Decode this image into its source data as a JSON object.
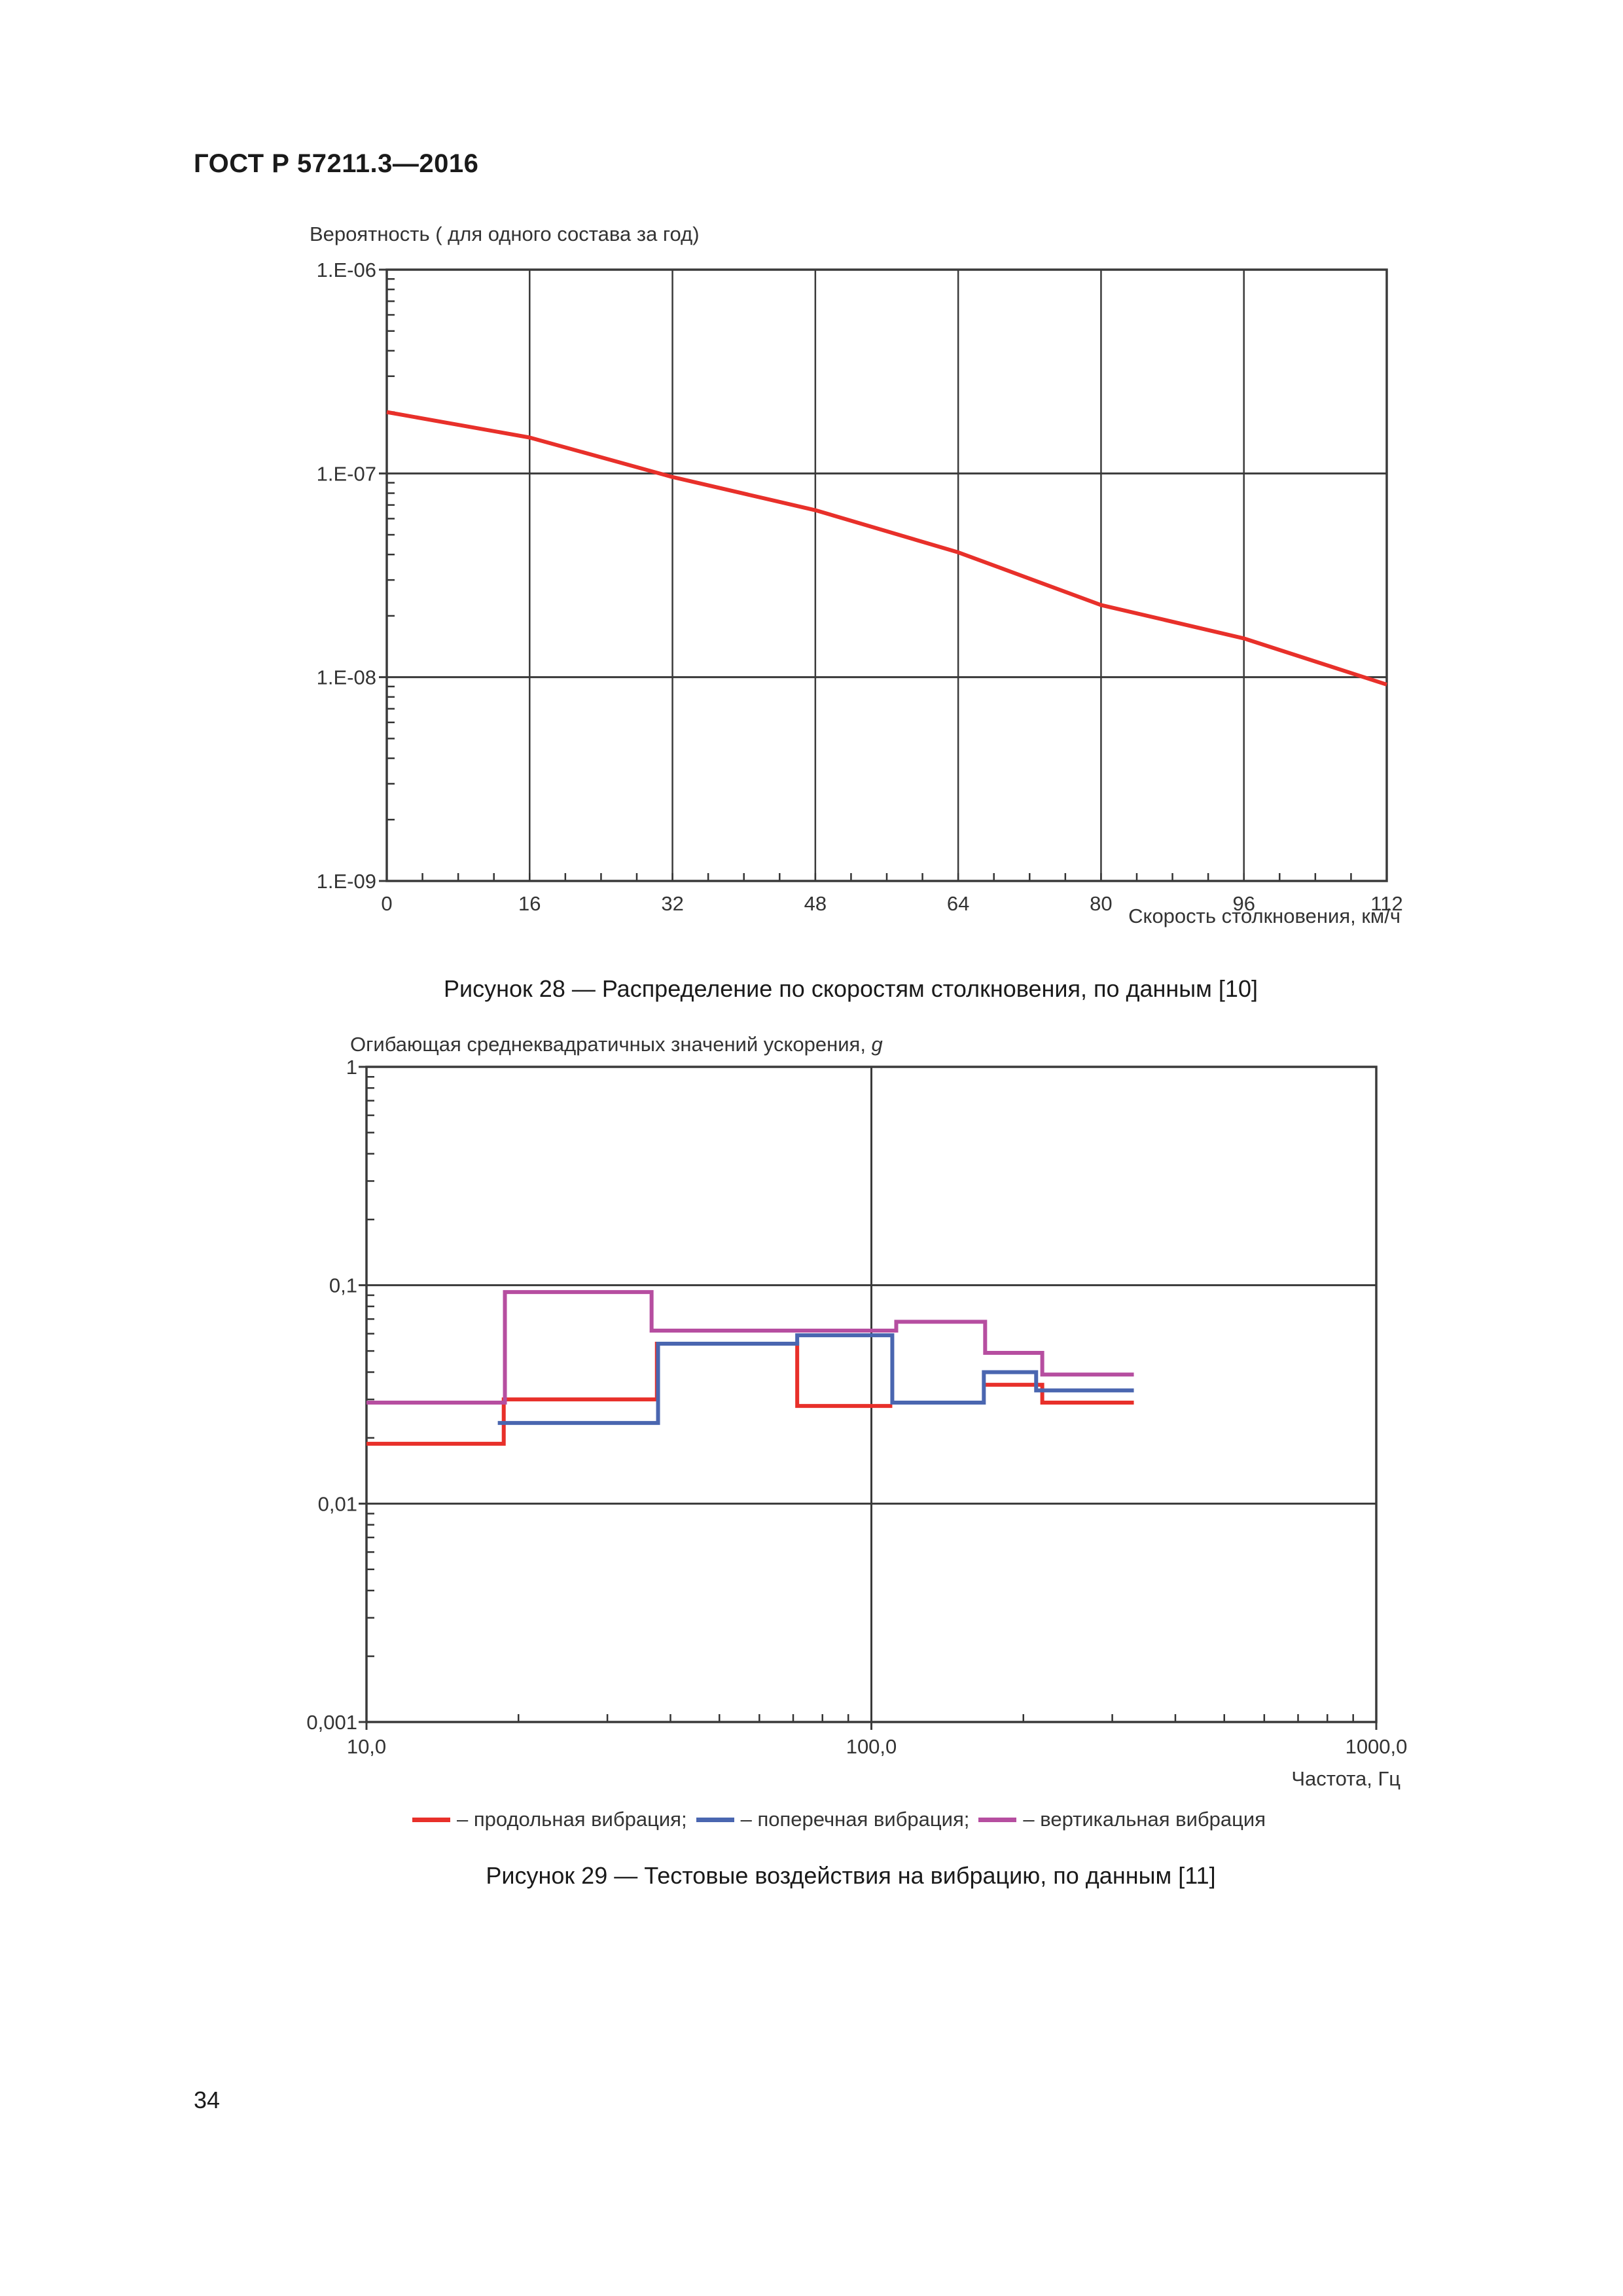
{
  "document": {
    "header": "ГОСТ Р 57211.3—2016",
    "page_number": "34"
  },
  "figure28": {
    "caption": "Рисунок 28 — Распределение по скоростям столкновения, по данным [10]",
    "y_title": "Вероятность ( для одного состава за год)",
    "x_title": "Скорость столкновения, км/ч",
    "y_ticks": [
      "1.E-06",
      "1.E-07",
      "1.E-08",
      "1.E-09"
    ],
    "x_ticks": [
      "0",
      "16",
      "32",
      "48",
      "64",
      "80",
      "96",
      "112"
    ],
    "line_color": "#e8302a"
  },
  "figure29": {
    "caption": "Рисунок 29 — Тестовые воздействия на вибрацию, по данным [11]",
    "y_title": "Огибающая среднеквадратичных значений ускорения, ",
    "y_title_unit": "g",
    "x_title": "Частота, Гц",
    "y_ticks": [
      "1",
      "0,1",
      "0,01",
      "0,001"
    ],
    "x_ticks": [
      "10,0",
      "100,0",
      "1000,0"
    ],
    "legend": [
      {
        "label": "– продольная вибрация;",
        "color": "#e8302a"
      },
      {
        "label": "– поперечная вибрация;",
        "color": "#4a66b0"
      },
      {
        "label": "– вертикальная вибрация",
        "color": "#b64ea0"
      }
    ]
  },
  "chart_data": [
    {
      "type": "line",
      "title": "Рисунок 28 — Распределение по скоростям столкновения, по данным [10]",
      "xlabel": "Скорость столкновения, км/ч",
      "ylabel": "Вероятность ( для одного состава за год)",
      "x": [
        0,
        16,
        32,
        48,
        64,
        80,
        96,
        112
      ],
      "series": [
        {
          "name": "Вероятность",
          "values": [
            2e-07,
            1.5e-07,
            9.6e-08,
            6.6e-08,
            4.1e-08,
            2.26e-08,
            1.55e-08,
            9.2e-09
          ],
          "color": "#e8302a"
        }
      ],
      "xlim": [
        0,
        112
      ],
      "ylim": [
        1e-09,
        1e-06
      ],
      "yscale": "log",
      "x_ticks": [
        0,
        16,
        32,
        48,
        64,
        80,
        96,
        112
      ],
      "y_ticks": [
        "1.E-09",
        "1.E-08",
        "1.E-07",
        "1.E-06"
      ],
      "grid": true,
      "legend": "none"
    },
    {
      "type": "line",
      "step": true,
      "title": "Рисунок 29 — Тестовые воздействия на вибрацию, по данным [11]",
      "xlabel": "Частота, Гц",
      "ylabel": "Огибающая среднеквадратичных значений ускорения, g",
      "xscale": "log",
      "yscale": "log",
      "xlim": [
        10,
        1000
      ],
      "ylim": [
        0.001,
        1
      ],
      "x_ticks": [
        "10,0",
        "100,0",
        "1000,0"
      ],
      "y_ticks": [
        "0,001",
        "0,01",
        "0,1",
        "1"
      ],
      "grid": true,
      "legend": "bottom",
      "series": [
        {
          "name": "продольная вибрация",
          "color": "#e8302a",
          "steps": [
            {
              "f_from": 10,
              "f_to": 18.7,
              "g": 0.0188
            },
            {
              "f_from": 18.7,
              "f_to": 37.6,
              "g": 0.03
            },
            {
              "f_from": 37.6,
              "f_to": 71.3,
              "g": 0.054
            },
            {
              "f_from": 71.3,
              "f_to": 110,
              "g": 0.028
            },
            {
              "f_from": 167,
              "f_to": 218,
              "g": 0.035
            },
            {
              "f_from": 218,
              "f_to": 331,
              "g": 0.029
            }
          ]
        },
        {
          "name": "поперечная вибрация",
          "color": "#4a66b0",
          "steps": [
            {
              "f_from": 18.2,
              "f_to": 37.8,
              "g": 0.0234
            },
            {
              "f_from": 37.8,
              "f_to": 71.3,
              "g": 0.054
            },
            {
              "f_from": 71.3,
              "f_to": 110,
              "g": 0.059
            },
            {
              "f_from": 110,
              "f_to": 167,
              "g": 0.029
            },
            {
              "f_from": 167,
              "f_to": 212,
              "g": 0.04
            },
            {
              "f_from": 212,
              "f_to": 331,
              "g": 0.033
            }
          ]
        },
        {
          "name": "вертикальная вибрация",
          "color": "#b64ea0",
          "steps": [
            {
              "f_from": 10,
              "f_to": 18.8,
              "g": 0.029
            },
            {
              "f_from": 18.8,
              "f_to": 36.7,
              "g": 0.093
            },
            {
              "f_from": 36.7,
              "f_to": 112,
              "g": 0.062
            },
            {
              "f_from": 112,
              "f_to": 168,
              "g": 0.068
            },
            {
              "f_from": 168,
              "f_to": 218,
              "g": 0.049
            },
            {
              "f_from": 218,
              "f_to": 331,
              "g": 0.039
            }
          ]
        }
      ]
    }
  ]
}
